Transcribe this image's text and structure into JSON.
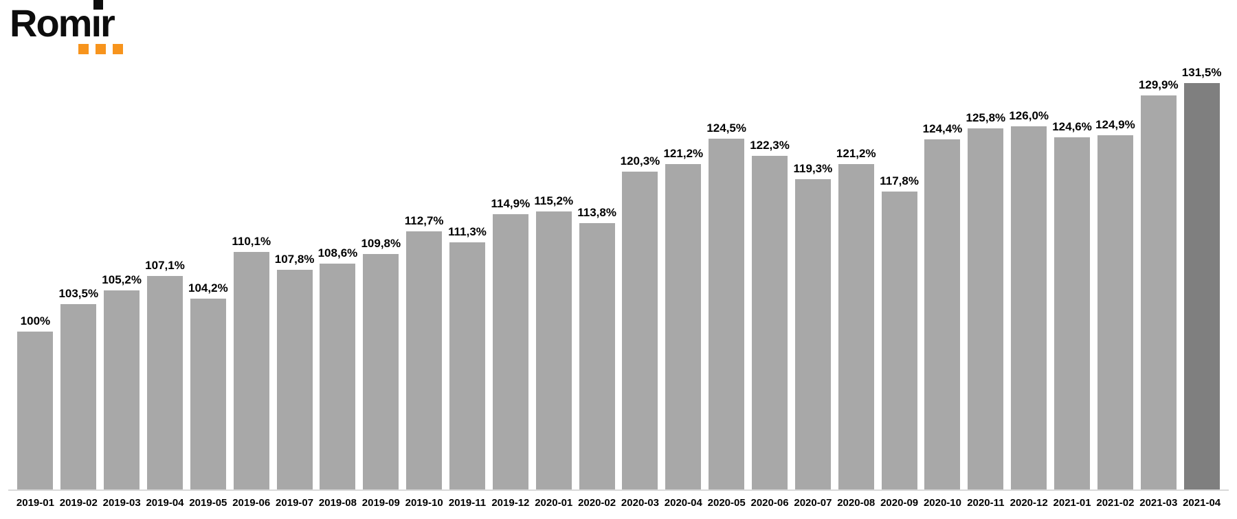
{
  "logo": {
    "text": "Romir",
    "accent_color": "#f7941d",
    "text_color": "#0d0d0d"
  },
  "colors": {
    "bar": "#a8a8a8",
    "bar_highlight": "#7f7f7f",
    "axis_line": "#d9d9d9",
    "label_text": "#000000",
    "background": "#ffffff"
  },
  "chart_data": {
    "type": "bar",
    "title": "",
    "xlabel": "",
    "ylabel": "",
    "categories": [
      "2019-01",
      "2019-02",
      "2019-03",
      "2019-04",
      "2019-05",
      "2019-06",
      "2019-07",
      "2019-08",
      "2019-09",
      "2019-10",
      "2019-11",
      "2019-12",
      "2020-01",
      "2020-02",
      "2020-03",
      "2020-04",
      "2020-05",
      "2020-06",
      "2020-07",
      "2020-08",
      "2020-09",
      "2020-10",
      "2020-11",
      "2020-12",
      "2021-01",
      "2021-02",
      "2021-03",
      "2021-04"
    ],
    "values": [
      100,
      103.5,
      105.2,
      107.1,
      104.2,
      110.1,
      107.8,
      108.6,
      109.8,
      112.7,
      111.3,
      114.9,
      115.2,
      113.8,
      120.3,
      121.2,
      124.5,
      122.3,
      119.3,
      121.2,
      117.8,
      124.4,
      125.8,
      126.0,
      124.6,
      124.9,
      129.9,
      131.5
    ],
    "labels": [
      "100%",
      "103,5%",
      "105,2%",
      "107,1%",
      "104,2%",
      "110,1%",
      "107,8%",
      "108,6%",
      "109,8%",
      "112,7%",
      "111,3%",
      "114,9%",
      "115,2%",
      "113,8%",
      "120,3%",
      "121,2%",
      "124,5%",
      "122,3%",
      "119,3%",
      "121,2%",
      "117,8%",
      "124,4%",
      "125,8%",
      "126,0%",
      "124,6%",
      "124,9%",
      "129,9%",
      "131,5%"
    ],
    "highlight_index": 27,
    "ylim": [
      80,
      135
    ],
    "grid": false,
    "legend": false,
    "value_labels_shown": true
  }
}
